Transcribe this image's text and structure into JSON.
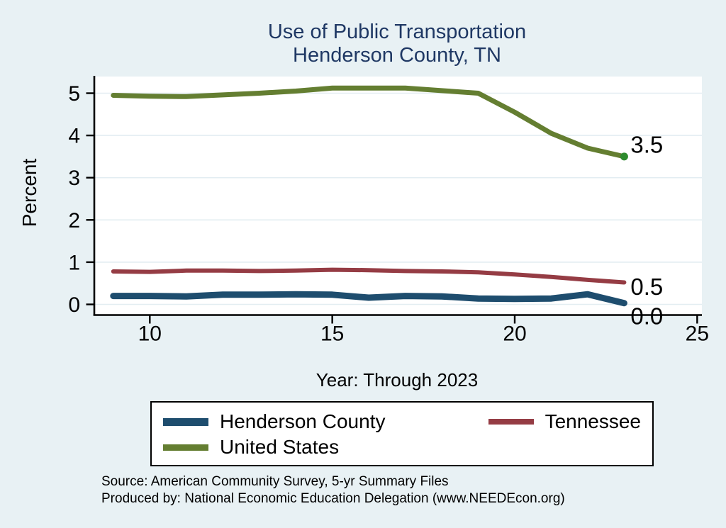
{
  "title": {
    "line1": "Use of Public Transportation",
    "line2": "Henderson County, TN"
  },
  "y_axis": {
    "label": "Percent",
    "ticks": [
      "0",
      "1",
      "2",
      "3",
      "4",
      "5"
    ]
  },
  "x_axis": {
    "label": "Year: Through 2023",
    "tick_labels": [
      "10",
      "15",
      "20",
      "25"
    ]
  },
  "colors": {
    "background": "#e8f1f4",
    "plot_background": "#ffffff",
    "gridline": "#e3edf2",
    "axis": "#000000",
    "title_text": "#1f3864",
    "henderson_blue": "#1e4d6e",
    "tennessee_red": "#953c44",
    "us_green": "#647e31",
    "end_marker_green": "#2e8b2e"
  },
  "chart_data": {
    "type": "line",
    "x_years": [
      2009,
      2010,
      2011,
      2012,
      2013,
      2014,
      2015,
      2016,
      2017,
      2018,
      2019,
      2020,
      2021,
      2022,
      2023
    ],
    "x_tick_years": [
      2010,
      2015,
      2020,
      2025
    ],
    "x_tick_labels": [
      "10",
      "15",
      "20",
      "25"
    ],
    "y_ticks": [
      0,
      1,
      2,
      3,
      4,
      5
    ],
    "ylim": [
      0,
      5
    ],
    "xlim_years": [
      2008.5,
      2025.2
    ],
    "grid": "horizontal",
    "legend_position": "bottom",
    "title": "Use of Public Transportation Henderson County, TN",
    "xlabel": "Year: Through 2023",
    "ylabel": "Percent",
    "series": [
      {
        "name": "Henderson County",
        "color": "#1e4d6e",
        "line_width": 9,
        "end_label": "0.0",
        "end_marker": false,
        "values": [
          0.2,
          0.2,
          0.19,
          0.23,
          0.23,
          0.24,
          0.23,
          0.16,
          0.2,
          0.19,
          0.14,
          0.13,
          0.14,
          0.24,
          0.03
        ]
      },
      {
        "name": "Tennessee",
        "color": "#953c44",
        "line_width": 6,
        "end_label": "0.5",
        "end_marker": false,
        "values": [
          0.78,
          0.77,
          0.8,
          0.8,
          0.79,
          0.8,
          0.82,
          0.81,
          0.79,
          0.78,
          0.76,
          0.71,
          0.65,
          0.58,
          0.52
        ]
      },
      {
        "name": "United States",
        "color": "#647e31",
        "line_width": 7,
        "end_label": "3.5",
        "end_marker": true,
        "values": [
          4.95,
          4.93,
          4.92,
          4.96,
          5.0,
          5.05,
          5.12,
          5.12,
          5.12,
          5.06,
          5.0,
          4.55,
          4.05,
          3.7,
          3.5
        ]
      }
    ]
  },
  "legend": {
    "items": [
      {
        "label": "Henderson County"
      },
      {
        "label": "Tennessee"
      },
      {
        "label": "United States"
      }
    ]
  },
  "source": {
    "line1": "Source: American Community Survey, 5-yr Summary Files",
    "line2": "Produced by: National Economic Education Delegation (www.NEEDEcon.org)"
  }
}
